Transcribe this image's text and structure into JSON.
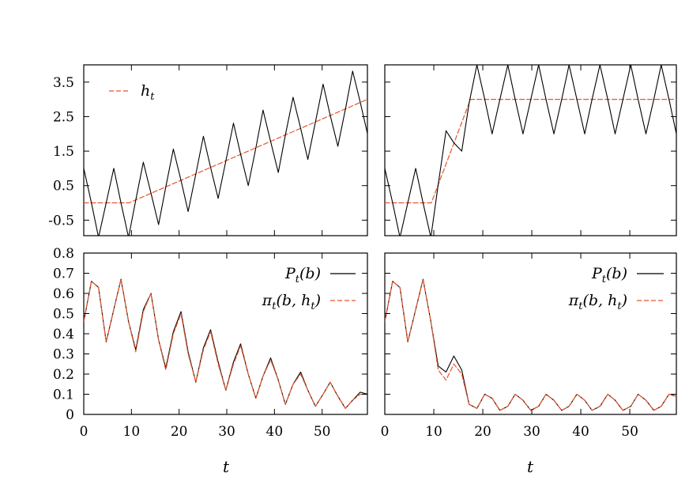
{
  "chart_data": [
    {
      "type": "line",
      "panel": "top-left",
      "xlim": [
        0,
        59.5
      ],
      "ylim": [
        -0.95,
        4.0
      ],
      "yticks": [
        "3.5",
        "2.5",
        "1.5",
        "0.5",
        "-0.5"
      ],
      "ytick_values": [
        3.5,
        2.5,
        1.5,
        0.5,
        -0.5
      ],
      "xticks": [],
      "xlabel": "",
      "legend": {
        "placement": "top-left",
        "entries": [
          "h_t"
        ]
      },
      "series": [
        {
          "name": "h_t",
          "style": "dashed",
          "color": "#e8542a",
          "x": [
            0,
            9.5,
            59.5
          ],
          "y": [
            0,
            0,
            3.0
          ]
        },
        {
          "style": "solid",
          "color": "#000000",
          "description_function": "h_t + sin(pi/2 + 2*pi*t/6.27)",
          "x": [
            0,
            1.6,
            3.1,
            4.7,
            6.3,
            7.8,
            9.4,
            10.9,
            12.5,
            14.1,
            15.7,
            17.2,
            18.8,
            20.4,
            21.9,
            23.5,
            25.1,
            26.6,
            28.2,
            29.8,
            31.4,
            32.9,
            34.5,
            36.1,
            37.6,
            39.2,
            40.8,
            42.3,
            43.9,
            45.5,
            47.0,
            48.6,
            50.2,
            51.7,
            53.3,
            54.9,
            56.4,
            58.0,
            59.5
          ],
          "y": [
            1.0,
            0.0,
            -1.0,
            0.0,
            1.0,
            0.0,
            -1.0,
            0.08,
            1.18,
            0.28,
            -0.63,
            0.46,
            1.56,
            0.65,
            -0.25,
            0.83,
            1.93,
            1.03,
            0.13,
            1.21,
            2.31,
            1.41,
            0.5,
            1.59,
            2.69,
            1.78,
            0.88,
            1.97,
            3.06,
            2.16,
            1.26,
            2.34,
            3.44,
            2.54,
            1.64,
            2.72,
            3.82,
            2.92,
            2.01
          ]
        }
      ]
    },
    {
      "type": "line",
      "panel": "top-right",
      "xlim": [
        0,
        59.5
      ],
      "ylim": [
        -0.95,
        4.0
      ],
      "yticks": [],
      "xticks": [],
      "xlabel": "",
      "series": [
        {
          "name": "h_t",
          "style": "dashed",
          "color": "#e8542a",
          "x": [
            0,
            9.5,
            17.5,
            59.5
          ],
          "y": [
            0,
            0,
            3.0,
            3.0
          ]
        },
        {
          "style": "solid",
          "color": "#000000",
          "description_function": "h_t + sin(pi/2 + 2*pi*t/6.27)",
          "x": [
            0,
            1.6,
            3.1,
            4.7,
            6.3,
            7.8,
            9.4,
            10.9,
            12.5,
            14.1,
            15.7,
            17.2,
            18.8,
            20.4,
            21.9,
            23.5,
            25.1,
            26.6,
            28.2,
            29.8,
            31.4,
            32.9,
            34.5,
            36.1,
            37.6,
            39.2,
            40.8,
            42.3,
            43.9,
            45.5,
            47.0,
            48.6,
            50.2,
            51.7,
            53.3,
            54.9,
            56.4,
            58.0,
            59.5
          ],
          "y": [
            1.0,
            0.0,
            -1.0,
            0.0,
            1.0,
            0.0,
            -1.0,
            0.53,
            2.09,
            1.74,
            1.5,
            2.89,
            4.0,
            3.0,
            2.0,
            3.0,
            4.0,
            3.0,
            2.0,
            3.0,
            4.0,
            3.0,
            2.0,
            3.0,
            4.0,
            3.0,
            2.0,
            3.0,
            4.0,
            3.0,
            2.0,
            3.0,
            4.0,
            3.0,
            2.0,
            3.0,
            4.0,
            3.0,
            2.0
          ]
        }
      ]
    },
    {
      "type": "line",
      "panel": "bottom-left",
      "xlim": [
        0,
        59.5
      ],
      "ylim": [
        0,
        0.8
      ],
      "yticks": [
        "0.8",
        "0.7",
        "0.6",
        "0.5",
        "0.4",
        "0.3",
        "0.2",
        "0.1",
        "0"
      ],
      "ytick_values": [
        0.8,
        0.7,
        0.6,
        0.5,
        0.4,
        0.3,
        0.2,
        0.1,
        0
      ],
      "xticks": [
        "0",
        "10",
        "20",
        "30",
        "40",
        "50"
      ],
      "xtick_values": [
        0,
        10,
        20,
        30,
        40,
        50
      ],
      "xlabel": "t",
      "legend": {
        "placement": "top-right",
        "entries": [
          "P_t(b)",
          "π_t(b,h_t)"
        ]
      },
      "series": [
        {
          "name": "P_t(b)",
          "style": "solid",
          "color": "#000000",
          "x": [
            0,
            1.6,
            3.1,
            4.7,
            6.3,
            7.8,
            9.4,
            10.9,
            12.5,
            14.1,
            15.7,
            17.2,
            18.8,
            20.4,
            21.9,
            23.5,
            25.1,
            26.6,
            28.2,
            29.8,
            31.4,
            32.9,
            34.5,
            36.1,
            37.6,
            39.2,
            40.8,
            42.3,
            43.9,
            45.5,
            47.0,
            48.6,
            50.2,
            51.7,
            53.3,
            54.9,
            56.4,
            58.0,
            59.5
          ],
          "y": [
            0.46,
            0.66,
            0.63,
            0.36,
            0.52,
            0.67,
            0.46,
            0.32,
            0.52,
            0.6,
            0.37,
            0.23,
            0.41,
            0.51,
            0.31,
            0.16,
            0.33,
            0.42,
            0.26,
            0.12,
            0.26,
            0.35,
            0.2,
            0.08,
            0.19,
            0.28,
            0.17,
            0.05,
            0.15,
            0.21,
            0.12,
            0.04,
            0.1,
            0.16,
            0.09,
            0.03,
            0.07,
            0.11,
            0.1
          ]
        },
        {
          "name": "π_t(b,h_t)",
          "style": "dashed",
          "color": "#e8542a",
          "x": [
            0,
            1.6,
            3.1,
            4.7,
            6.3,
            7.8,
            9.4,
            10.9,
            12.5,
            14.1,
            15.7,
            17.2,
            18.8,
            20.4,
            21.9,
            23.5,
            25.1,
            26.6,
            28.2,
            29.8,
            31.4,
            32.9,
            34.5,
            36.1,
            37.6,
            39.2,
            40.8,
            42.3,
            43.9,
            45.5,
            47.0,
            48.6,
            50.2,
            51.7,
            53.3,
            54.9,
            56.4,
            58.0,
            59.5
          ],
          "y": [
            0.46,
            0.66,
            0.63,
            0.36,
            0.52,
            0.67,
            0.46,
            0.31,
            0.51,
            0.6,
            0.37,
            0.22,
            0.4,
            0.5,
            0.3,
            0.16,
            0.32,
            0.41,
            0.25,
            0.12,
            0.25,
            0.34,
            0.2,
            0.08,
            0.19,
            0.27,
            0.17,
            0.05,
            0.15,
            0.2,
            0.12,
            0.04,
            0.1,
            0.16,
            0.09,
            0.03,
            0.07,
            0.1,
            0.1
          ]
        }
      ]
    },
    {
      "type": "line",
      "panel": "bottom-right",
      "xlim": [
        0,
        59.5
      ],
      "ylim": [
        0,
        0.8
      ],
      "yticks": [],
      "xticks": [
        "0",
        "10",
        "20",
        "30",
        "40",
        "50"
      ],
      "xtick_values": [
        0,
        10,
        20,
        30,
        40,
        50
      ],
      "xlabel": "t",
      "legend": {
        "placement": "top-right",
        "entries": [
          "P_t(b)",
          "π_t(b,h_t)"
        ]
      },
      "series": [
        {
          "name": "P_t(b)",
          "style": "solid",
          "color": "#000000",
          "x": [
            0,
            1.6,
            3.1,
            4.7,
            6.3,
            7.8,
            9.4,
            10.9,
            12.5,
            14.1,
            15.7,
            17.2,
            18.8,
            20.4,
            21.9,
            23.5,
            25.1,
            26.6,
            28.2,
            29.8,
            31.4,
            32.9,
            34.5,
            36.1,
            37.6,
            39.2,
            40.8,
            42.3,
            43.9,
            45.5,
            47.0,
            48.6,
            50.2,
            51.7,
            53.3,
            54.9,
            56.4,
            58.0,
            59.5
          ],
          "y": [
            0.46,
            0.66,
            0.63,
            0.36,
            0.52,
            0.67,
            0.46,
            0.24,
            0.21,
            0.29,
            0.22,
            0.05,
            0.03,
            0.1,
            0.08,
            0.02,
            0.04,
            0.1,
            0.07,
            0.02,
            0.04,
            0.1,
            0.07,
            0.02,
            0.04,
            0.1,
            0.07,
            0.02,
            0.04,
            0.1,
            0.07,
            0.02,
            0.04,
            0.1,
            0.07,
            0.02,
            0.04,
            0.1,
            0.09
          ]
        },
        {
          "name": "π_t(b,h_t)",
          "style": "dashed",
          "color": "#e8542a",
          "x": [
            0,
            1.6,
            3.1,
            4.7,
            6.3,
            7.8,
            9.4,
            10.9,
            12.5,
            14.1,
            15.7,
            17.2,
            18.8,
            20.4,
            21.9,
            23.5,
            25.1,
            26.6,
            28.2,
            29.8,
            31.4,
            32.9,
            34.5,
            36.1,
            37.6,
            39.2,
            40.8,
            42.3,
            43.9,
            45.5,
            47.0,
            48.6,
            50.2,
            51.7,
            53.3,
            54.9,
            56.4,
            58.0,
            59.5
          ],
          "y": [
            0.46,
            0.66,
            0.63,
            0.36,
            0.52,
            0.67,
            0.46,
            0.22,
            0.17,
            0.25,
            0.2,
            0.05,
            0.03,
            0.1,
            0.08,
            0.02,
            0.04,
            0.1,
            0.07,
            0.02,
            0.04,
            0.1,
            0.07,
            0.02,
            0.04,
            0.1,
            0.07,
            0.02,
            0.04,
            0.1,
            0.07,
            0.02,
            0.04,
            0.1,
            0.07,
            0.02,
            0.04,
            0.1,
            0.09
          ]
        }
      ]
    }
  ]
}
